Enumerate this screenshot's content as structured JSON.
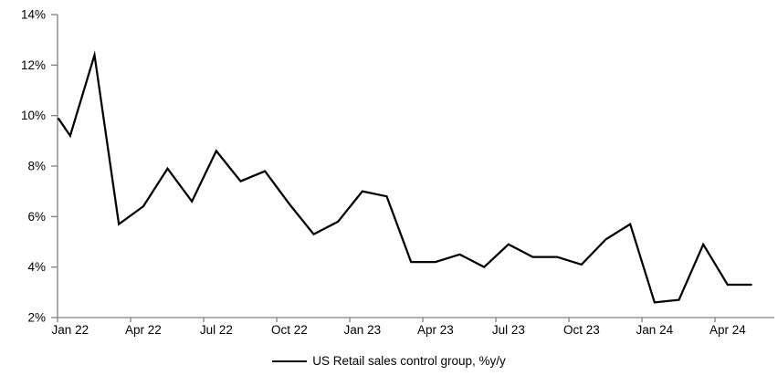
{
  "chart_data": {
    "type": "line",
    "title": "",
    "legend_label": "US Retail sales control group, %y/y",
    "legend_position": "bottom-center",
    "grid": "off",
    "background": "#ffffff",
    "line_color": "#000000",
    "axis_color": "#7f7f7f",
    "text_color": "#000000",
    "ylim": [
      2,
      14
    ],
    "y_ticks": [
      {
        "label": "14%",
        "value": 14
      },
      {
        "label": "12%",
        "value": 12
      },
      {
        "label": "10%",
        "value": 10
      },
      {
        "label": "8%",
        "value": 8
      },
      {
        "label": "6%",
        "value": 6
      },
      {
        "label": "4%",
        "value": 4
      },
      {
        "label": "2%",
        "value": 2
      }
    ],
    "x_ticks": [
      {
        "label": "Jan 22",
        "month_index": 0
      },
      {
        "label": "Apr 22",
        "month_index": 3
      },
      {
        "label": "Jul 22",
        "month_index": 6
      },
      {
        "label": "Oct 22",
        "month_index": 9
      },
      {
        "label": "Jan 23",
        "month_index": 12
      },
      {
        "label": "Apr 23",
        "month_index": 15
      },
      {
        "label": "Jul 23",
        "month_index": 18
      },
      {
        "label": "Oct 23",
        "month_index": 21
      },
      {
        "label": "Jan 24",
        "month_index": 24
      },
      {
        "label": "Apr 24",
        "month_index": 27
      }
    ],
    "categories": [
      "Jan 22",
      "Feb 22",
      "Mar 22",
      "Apr 22",
      "May 22",
      "Jun 22",
      "Jul 22",
      "Aug 22",
      "Sep 22",
      "Oct 22",
      "Nov 22",
      "Dec 22",
      "Jan 23",
      "Feb 23",
      "Mar 23",
      "Apr 23",
      "May 23",
      "Jun 23",
      "Jul 23",
      "Aug 23",
      "Sep 23",
      "Oct 23",
      "Nov 23",
      "Dec 23",
      "Jan 24",
      "Feb 24",
      "Mar 24",
      "Apr 24",
      "May 24"
    ],
    "values": [
      9.2,
      12.4,
      5.7,
      6.4,
      7.9,
      6.6,
      8.6,
      7.4,
      7.8,
      6.5,
      5.3,
      5.8,
      7.0,
      6.8,
      4.2,
      4.2,
      4.5,
      4.0,
      4.9,
      4.4,
      4.4,
      4.1,
      5.1,
      5.7,
      2.6,
      2.7,
      4.9,
      3.3,
      3.3
    ],
    "lead_in_from_axis_value": 9.9
  }
}
